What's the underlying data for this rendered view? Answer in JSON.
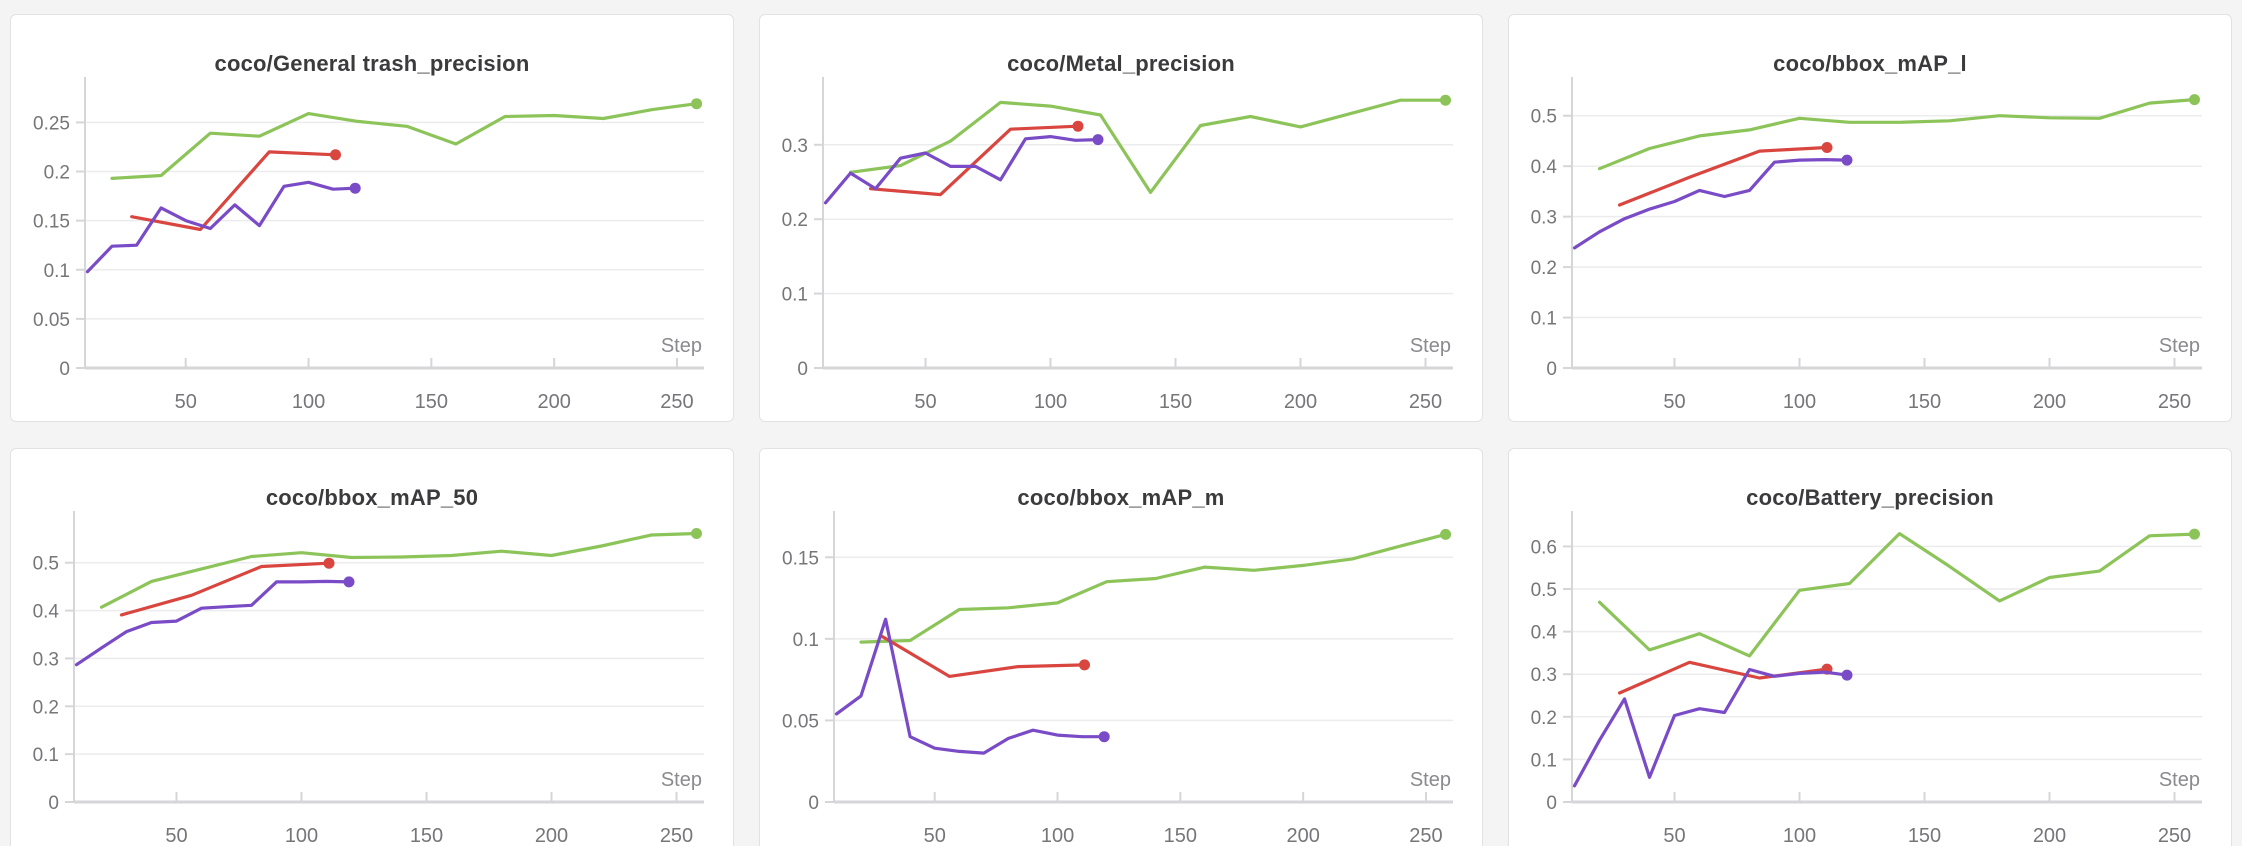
{
  "page": {
    "background": "#f4f4f5",
    "panel_background": "#ffffff",
    "panel_border": "#e2e2e4",
    "grid_line_color": "#ececee",
    "axis_line_color": "#d6d6d9",
    "tick_label_color": "#76767a",
    "title_color": "#3b3b3d"
  },
  "axis": {
    "x_label": "Step"
  },
  "chart_data": [
    {
      "type": "line",
      "title": "coco/General trash_precision",
      "xlabel": "Step",
      "x_domain": [
        9,
        261
      ],
      "x_ticks": [
        50,
        100,
        150,
        200,
        250
      ],
      "y_ticks": [
        0,
        0.05,
        0.1,
        0.15,
        0.2,
        0.25
      ],
      "ylim": [
        0,
        0.284
      ],
      "grid": "horizontal",
      "legend": "none",
      "series": [
        {
          "name": "run-green",
          "color": "#8cc45a",
          "end_dot": true,
          "x": [
            20,
            40,
            60,
            80,
            100,
            120,
            140,
            160,
            180,
            200,
            220,
            240,
            258
          ],
          "y": [
            0.193,
            0.196,
            0.239,
            0.236,
            0.259,
            0.251,
            0.246,
            0.228,
            0.256,
            0.257,
            0.254,
            0.263,
            0.269
          ]
        },
        {
          "name": "run-red",
          "color": "#d9463f",
          "end_dot": true,
          "x": [
            28,
            56,
            84,
            111
          ],
          "y": [
            0.154,
            0.141,
            0.22,
            0.217
          ]
        },
        {
          "name": "run-purple",
          "color": "#7a4bc6",
          "end_dot": true,
          "x": [
            10,
            20,
            30,
            40,
            50,
            60,
            70,
            80,
            90,
            100,
            110,
            119
          ],
          "y": [
            0.098,
            0.124,
            0.125,
            0.163,
            0.15,
            0.142,
            0.166,
            0.145,
            0.185,
            0.189,
            0.182,
            0.183
          ]
        }
      ]
    },
    {
      "type": "line",
      "title": "coco/Metal_precision",
      "xlabel": "Step",
      "x_domain": [
        9,
        261
      ],
      "x_ticks": [
        50,
        100,
        150,
        200,
        250
      ],
      "y_ticks": [
        0,
        0.1,
        0.2,
        0.3
      ],
      "ylim": [
        0,
        0.375
      ],
      "grid": "horizontal",
      "legend": "none",
      "series": [
        {
          "name": "run-green",
          "color": "#8cc45a",
          "end_dot": true,
          "x": [
            20,
            40,
            60,
            80,
            100,
            120,
            140,
            160,
            180,
            200,
            220,
            240,
            258
          ],
          "y": [
            0.263,
            0.272,
            0.305,
            0.357,
            0.352,
            0.34,
            0.236,
            0.326,
            0.338,
            0.324,
            0.342,
            0.36,
            0.36
          ]
        },
        {
          "name": "run-red",
          "color": "#d9463f",
          "end_dot": true,
          "x": [
            28,
            56,
            84,
            111
          ],
          "y": [
            0.241,
            0.233,
            0.321,
            0.325
          ]
        },
        {
          "name": "run-purple",
          "color": "#7a4bc6",
          "end_dot": true,
          "x": [
            10,
            20,
            30,
            40,
            50,
            60,
            70,
            80,
            90,
            100,
            110,
            119
          ],
          "y": [
            0.222,
            0.262,
            0.241,
            0.282,
            0.289,
            0.271,
            0.271,
            0.253,
            0.308,
            0.311,
            0.306,
            0.307
          ]
        }
      ]
    },
    {
      "type": "line",
      "title": "coco/bbox_mAP_l",
      "xlabel": "Step",
      "x_domain": [
        9,
        261
      ],
      "x_ticks": [
        50,
        100,
        150,
        200,
        250
      ],
      "y_ticks": [
        0,
        0.1,
        0.2,
        0.3,
        0.4,
        0.5
      ],
      "ylim": [
        0,
        0.553
      ],
      "grid": "horizontal",
      "legend": "none",
      "series": [
        {
          "name": "run-green",
          "color": "#8cc45a",
          "end_dot": true,
          "x": [
            20,
            40,
            60,
            80,
            100,
            120,
            140,
            160,
            180,
            200,
            220,
            240,
            258
          ],
          "y": [
            0.395,
            0.435,
            0.46,
            0.472,
            0.495,
            0.487,
            0.487,
            0.49,
            0.5,
            0.496,
            0.495,
            0.525,
            0.532
          ]
        },
        {
          "name": "run-red",
          "color": "#d9463f",
          "end_dot": true,
          "x": [
            28,
            56,
            84,
            111
          ],
          "y": [
            0.323,
            0.378,
            0.43,
            0.437
          ]
        },
        {
          "name": "run-purple",
          "color": "#7a4bc6",
          "end_dot": true,
          "x": [
            10,
            20,
            30,
            40,
            50,
            60,
            70,
            80,
            90,
            100,
            110,
            119
          ],
          "y": [
            0.238,
            0.27,
            0.296,
            0.315,
            0.33,
            0.352,
            0.34,
            0.352,
            0.408,
            0.412,
            0.413,
            0.412
          ]
        }
      ]
    },
    {
      "type": "line",
      "title": "coco/bbox_mAP_50",
      "xlabel": "Step",
      "x_domain": [
        9,
        261
      ],
      "x_ticks": [
        50,
        100,
        150,
        200,
        250
      ],
      "y_ticks": [
        0,
        0.1,
        0.2,
        0.3,
        0.4,
        0.5
      ],
      "ylim": [
        0,
        0.583
      ],
      "grid": "horizontal",
      "legend": "none",
      "series": [
        {
          "name": "run-green",
          "color": "#8cc45a",
          "end_dot": true,
          "x": [
            20,
            40,
            60,
            80,
            100,
            120,
            140,
            160,
            180,
            200,
            220,
            240,
            258
          ],
          "y": [
            0.407,
            0.461,
            0.487,
            0.513,
            0.521,
            0.511,
            0.512,
            0.515,
            0.524,
            0.515,
            0.535,
            0.558,
            0.561
          ]
        },
        {
          "name": "run-red",
          "color": "#d9463f",
          "end_dot": true,
          "x": [
            28,
            56,
            84,
            111
          ],
          "y": [
            0.391,
            0.432,
            0.492,
            0.499
          ]
        },
        {
          "name": "run-purple",
          "color": "#7a4bc6",
          "end_dot": true,
          "x": [
            10,
            20,
            30,
            40,
            50,
            60,
            70,
            80,
            90,
            100,
            110,
            119
          ],
          "y": [
            0.287,
            0.322,
            0.356,
            0.375,
            0.378,
            0.405,
            0.408,
            0.411,
            0.46,
            0.46,
            0.461,
            0.46
          ]
        }
      ]
    },
    {
      "type": "line",
      "title": "coco/bbox_mAP_m",
      "xlabel": "Step",
      "x_domain": [
        9,
        261
      ],
      "x_ticks": [
        50,
        100,
        150,
        200,
        250
      ],
      "y_ticks": [
        0,
        0.05,
        0.1,
        0.15
      ],
      "ylim": [
        0,
        0.171
      ],
      "grid": "horizontal",
      "legend": "none",
      "series": [
        {
          "name": "run-green",
          "color": "#8cc45a",
          "end_dot": true,
          "x": [
            20,
            40,
            60,
            80,
            100,
            120,
            140,
            160,
            180,
            200,
            220,
            240,
            258
          ],
          "y": [
            0.098,
            0.099,
            0.118,
            0.119,
            0.122,
            0.135,
            0.137,
            0.144,
            0.142,
            0.145,
            0.149,
            0.157,
            0.164
          ]
        },
        {
          "name": "run-red",
          "color": "#d9463f",
          "end_dot": true,
          "x": [
            28,
            56,
            84,
            111
          ],
          "y": [
            0.102,
            0.077,
            0.083,
            0.084
          ]
        },
        {
          "name": "run-purple",
          "color": "#7a4bc6",
          "end_dot": true,
          "x": [
            10,
            20,
            30,
            40,
            50,
            60,
            70,
            80,
            90,
            100,
            110,
            119
          ],
          "y": [
            0.054,
            0.065,
            0.112,
            0.04,
            0.033,
            0.031,
            0.03,
            0.039,
            0.044,
            0.041,
            0.04,
            0.04
          ]
        }
      ]
    },
    {
      "type": "line",
      "title": "coco/Battery_precision",
      "xlabel": "Step",
      "x_domain": [
        9,
        261
      ],
      "x_ticks": [
        50,
        100,
        150,
        200,
        250
      ],
      "y_ticks": [
        0,
        0.1,
        0.2,
        0.3,
        0.4,
        0.5,
        0.6
      ],
      "ylim": [
        0,
        0.655
      ],
      "grid": "horizontal",
      "legend": "none",
      "series": [
        {
          "name": "run-green",
          "color": "#8cc45a",
          "end_dot": true,
          "x": [
            20,
            40,
            60,
            80,
            100,
            120,
            140,
            160,
            180,
            200,
            220,
            240,
            258
          ],
          "y": [
            0.469,
            0.357,
            0.395,
            0.343,
            0.497,
            0.513,
            0.63,
            0.553,
            0.472,
            0.527,
            0.542,
            0.625,
            0.629
          ]
        },
        {
          "name": "run-red",
          "color": "#d9463f",
          "end_dot": true,
          "x": [
            28,
            56,
            84,
            111
          ],
          "y": [
            0.256,
            0.328,
            0.291,
            0.312
          ]
        },
        {
          "name": "run-purple",
          "color": "#7a4bc6",
          "end_dot": true,
          "x": [
            10,
            20,
            30,
            40,
            50,
            60,
            70,
            80,
            90,
            100,
            110,
            119
          ],
          "y": [
            0.038,
            0.145,
            0.242,
            0.058,
            0.203,
            0.219,
            0.21,
            0.311,
            0.295,
            0.302,
            0.305,
            0.298
          ]
        }
      ]
    }
  ]
}
